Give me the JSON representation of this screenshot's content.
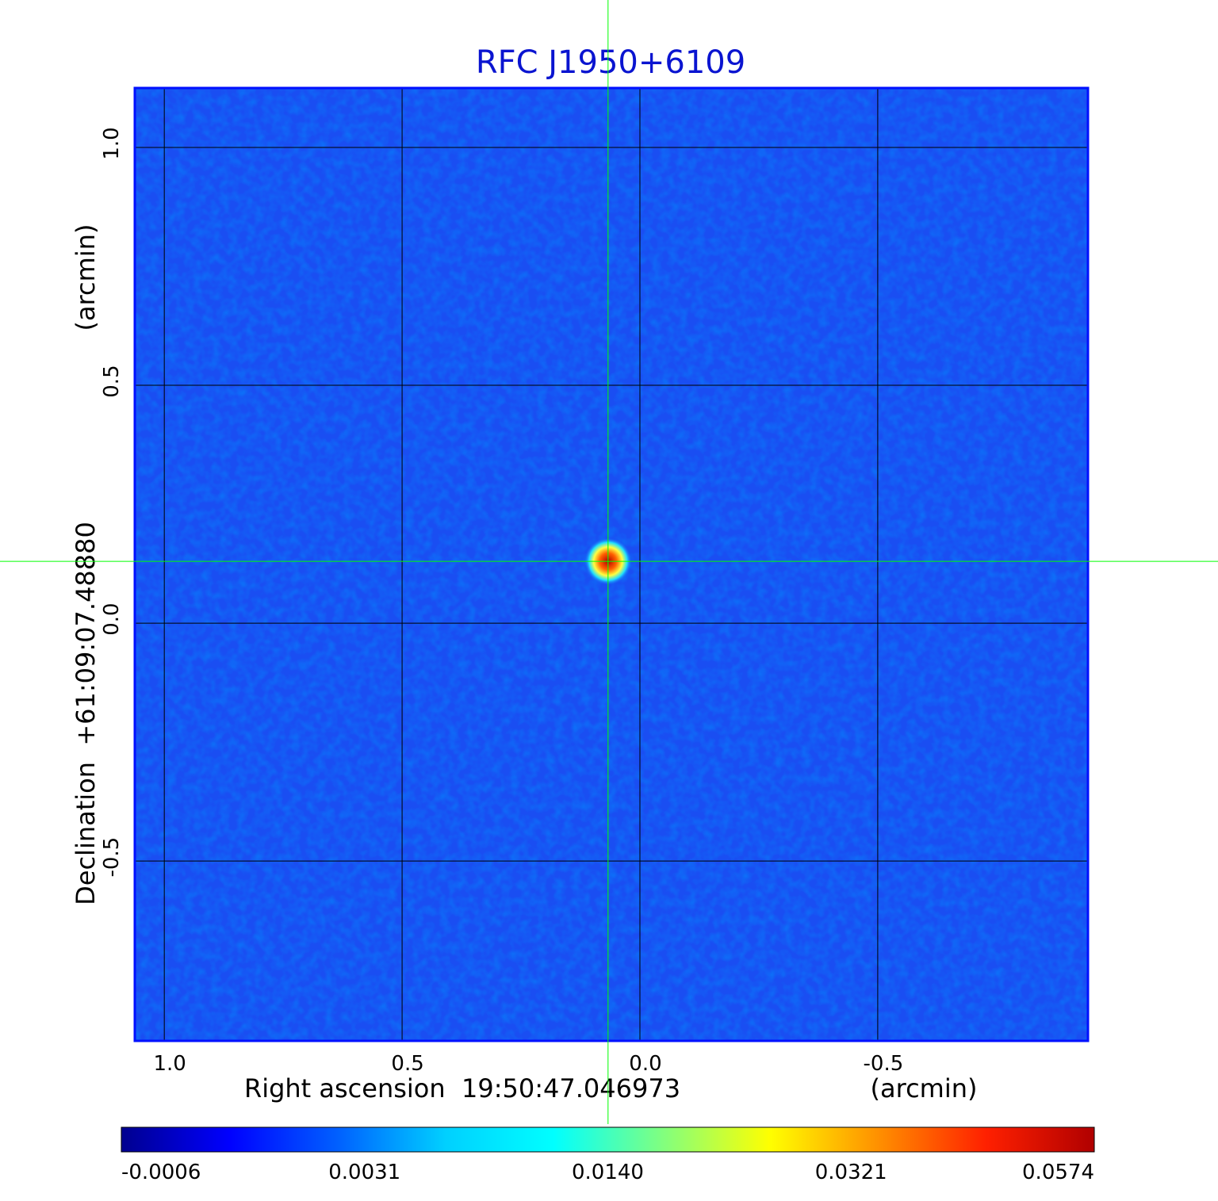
{
  "chart_data": {
    "type": "image",
    "title": "RFC J1950+6109",
    "xlabel": "Right ascension  19:50:47.046973",
    "xunit": "(arcmin)",
    "ylabel": "Declination  +61:09:07.48880",
    "yunit": "(arcmin)",
    "xlim": [
      1.062,
      -0.942
    ],
    "ylim": [
      -0.878,
      1.125
    ],
    "xticks": [
      {
        "value": 1,
        "label": "1.0"
      },
      0.5,
      {
        "value": 0,
        "label": "0.0"
      },
      -0.5
    ],
    "yticks": [
      {
        "value": 1,
        "label": "1.0"
      },
      0.5,
      {
        "value": 0,
        "label": "0.0"
      },
      -0.5
    ],
    "grid": true,
    "crosshair": {
      "x": 0.067,
      "y": 0.13,
      "color": "#00ff00"
    },
    "colorbar": {
      "colors": [
        "#00008f",
        "#0000ff",
        "#0060ff",
        "#00d0ff",
        "#00ffff",
        "#80ff80",
        "#ffff00",
        "#ff9000",
        "#ff2000",
        "#b00000"
      ],
      "ticks": [
        -0.0006,
        0.0031,
        {
          "value": 0.014,
          "label": "0.0140"
        },
        0.0321,
        0.0574
      ]
    }
  }
}
